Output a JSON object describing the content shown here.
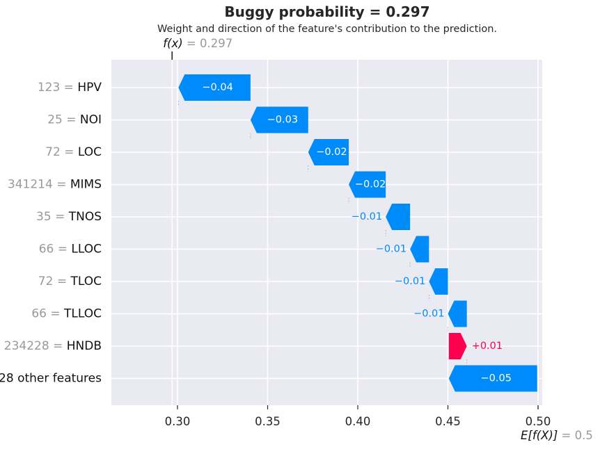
{
  "title": "Buggy probability = 0.297",
  "subtitle": "Weight and direction of the feature's contribution to the prediction.",
  "fx_label": "f(x)",
  "fx_value_text": "= 0.297",
  "efx_label": "E[f(X)]",
  "efx_value_text": "= 0.5",
  "colors": {
    "negative": "#008bfb",
    "positive": "#ff0051",
    "background": "#eaeaf2",
    "grid": "#ffffff",
    "value_gray": "#999999",
    "text": "#262626"
  },
  "chart_data": {
    "type": "waterfall",
    "title": "Buggy probability = 0.297",
    "subtitle": "Weight and direction of the feature's contribution to the prediction.",
    "base_value": 0.5,
    "prediction": 0.297,
    "xlim": [
      0.265,
      0.5
    ],
    "xticks": [
      0.3,
      0.35,
      0.4,
      0.45,
      0.5
    ],
    "xtick_labels": [
      "0.30",
      "0.35",
      "0.40",
      "0.45",
      "0.50"
    ],
    "grid": true,
    "features": [
      {
        "value_text": "123",
        "name": "HPV",
        "start": 0.3405,
        "end": 0.3005,
        "label": "−0.04"
      },
      {
        "value_text": "25",
        "name": "NOI",
        "start": 0.3725,
        "end": 0.3405,
        "label": "−0.03"
      },
      {
        "value_text": "72",
        "name": "LOC",
        "start": 0.395,
        "end": 0.3725,
        "label": "−0.02"
      },
      {
        "value_text": "341214",
        "name": "MIMS",
        "start": 0.4155,
        "end": 0.395,
        "label": "−0.02"
      },
      {
        "value_text": "35",
        "name": "TNOS",
        "start": 0.429,
        "end": 0.4155,
        "label": "−0.01"
      },
      {
        "value_text": "66",
        "name": "LLOC",
        "start": 0.4395,
        "end": 0.429,
        "label": "−0.01"
      },
      {
        "value_text": "72",
        "name": "TLOC",
        "start": 0.45,
        "end": 0.4395,
        "label": "−0.01"
      },
      {
        "value_text": "66",
        "name": "TLLOC",
        "start": 0.4605,
        "end": 0.45,
        "label": "−0.01"
      },
      {
        "value_text": "234228",
        "name": "HNDB",
        "start": 0.4505,
        "end": 0.4605,
        "label": "+0.01"
      },
      {
        "value_text": "",
        "name": "28 other features",
        "start": 0.4995,
        "end": 0.4505,
        "label": "−0.05"
      }
    ]
  }
}
